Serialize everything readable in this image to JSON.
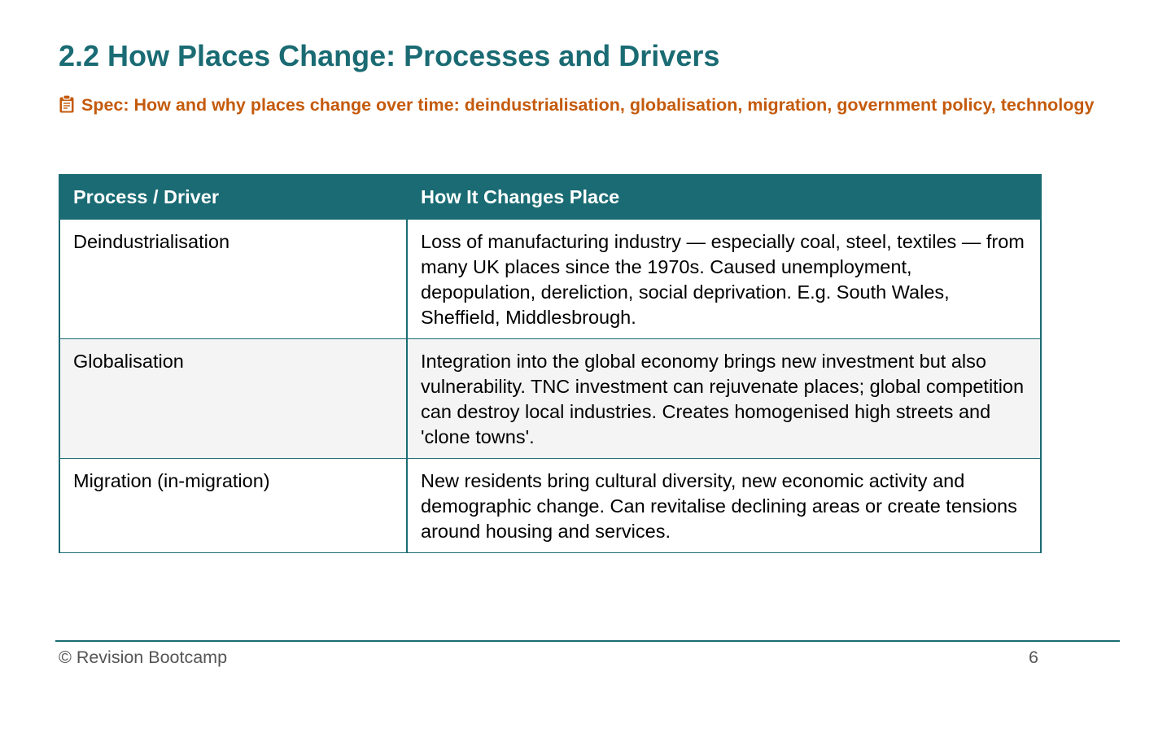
{
  "page": {
    "title": "2.2 How Places Change: Processes and Drivers",
    "spec_icon": "clipboard-icon",
    "spec_text": "Spec: How and why places change over time: deindustrialisation, globalisation, migration, government policy, technology"
  },
  "table": {
    "headers": [
      "Process / Driver",
      "How It Changes Place"
    ],
    "rows": [
      {
        "driver": "Deindustrialisation",
        "effect": "Loss of manufacturing industry — especially coal, steel, textiles — from many UK places since the 1970s. Caused unemployment, depopulation, dereliction, social deprivation. E.g. South Wales, Sheffield, Middlesbrough."
      },
      {
        "driver": "Globalisation",
        "effect": "Integration into the global economy brings new investment but also vulnerability. TNC investment can rejuvenate places; global competition can destroy local industries. Creates homogenised high streets and 'clone towns'."
      },
      {
        "driver": "Migration (in-migration)",
        "effect": "New residents bring cultural diversity, new economic activity and demographic change. Can revitalise declining areas or create tensions around housing and services."
      }
    ]
  },
  "footer": {
    "copyright": "© Revision Bootcamp",
    "page_number": "6"
  },
  "colors": {
    "accent": "#1a6b73",
    "spec": "#c45a0c",
    "alt_row": "#f4f4f4"
  }
}
